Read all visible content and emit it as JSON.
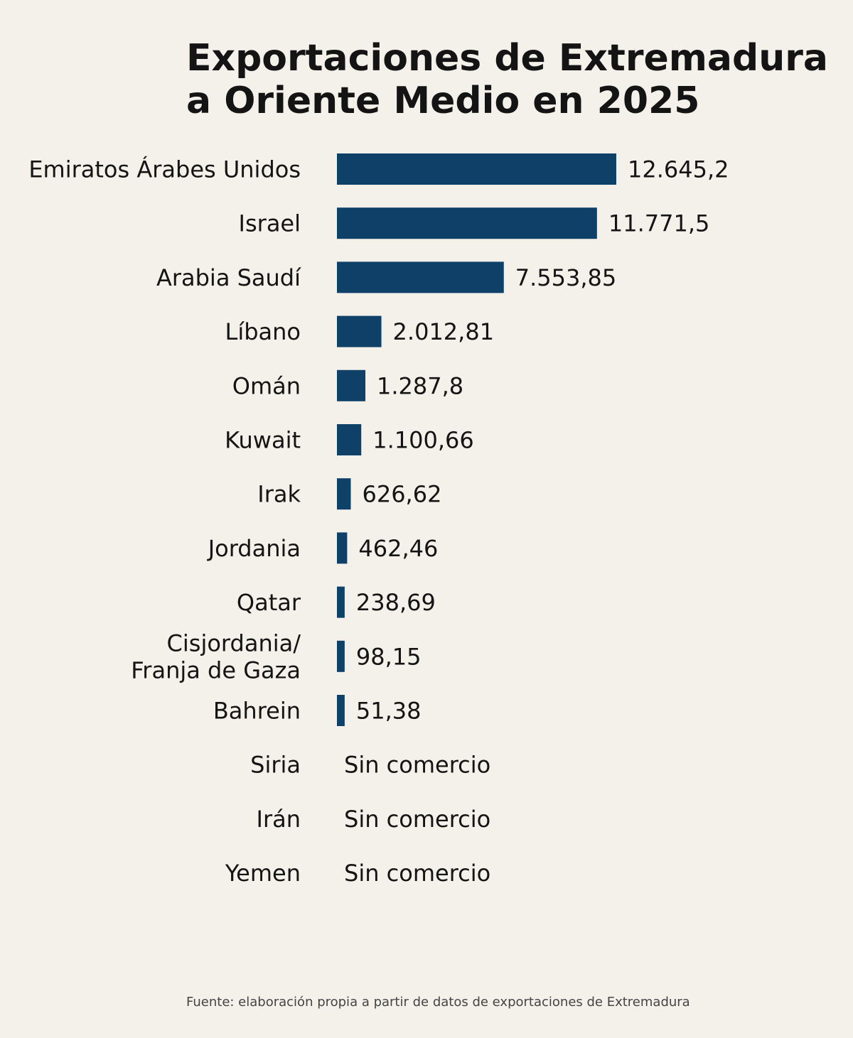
{
  "chart_data": {
    "type": "bar",
    "orientation": "horizontal",
    "title": [
      "Exportaciones de Extremadura",
      "a Oriente Medio en 2025"
    ],
    "categories": [
      [
        "Emiratos Árabes Unidos"
      ],
      [
        "Israel"
      ],
      [
        "Arabia Saudí"
      ],
      [
        "Líbano"
      ],
      [
        "Omán"
      ],
      [
        "Kuwait"
      ],
      [
        "Irak"
      ],
      [
        "Jordania"
      ],
      [
        "Qatar"
      ],
      [
        "Cisjordania/",
        "Franja de Gaza"
      ],
      [
        "Bahrein"
      ],
      [
        "Siria"
      ],
      [
        "Irán"
      ],
      [
        "Yemen"
      ]
    ],
    "values": [
      12645.2,
      11771.5,
      7553.85,
      2012.81,
      1287.8,
      1100.66,
      626.62,
      462.46,
      238.69,
      98.15,
      51.38,
      null,
      null,
      null
    ],
    "value_labels": [
      "12.645,2",
      "11.771,5",
      "7.553,85",
      "2.012,81",
      "1.287,8",
      "1.100,66",
      "626,62",
      "462,46",
      "238,69",
      "98,15",
      "51,38",
      "Sin comercio",
      "Sin comercio",
      "Sin comercio"
    ],
    "xlim": [
      0,
      12645.2
    ],
    "min_bar_units": 350,
    "xlabel": "",
    "ylabel": "",
    "grid": false,
    "bar_color": "#0f4068",
    "source": "Fuente: elaboración propia a partir de datos de exportaciones de Extremadura"
  }
}
